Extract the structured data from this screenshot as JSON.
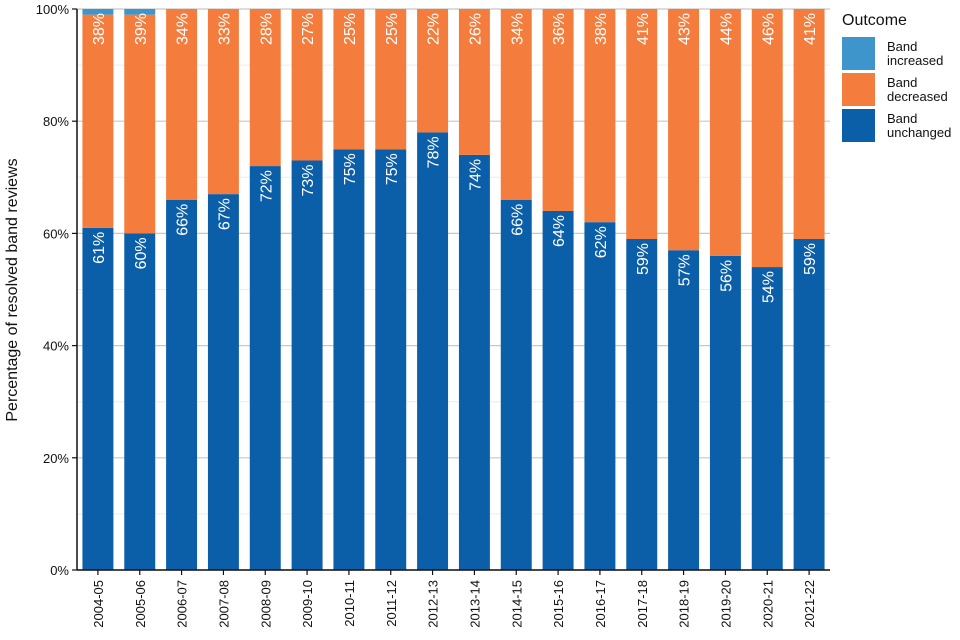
{
  "chart_data": {
    "type": "bar",
    "stacked": true,
    "title": "",
    "xlabel": "",
    "ylabel": "Percentage of resolved band reviews",
    "ylim": [
      0,
      100
    ],
    "yticks": [
      0,
      20,
      40,
      60,
      80,
      100
    ],
    "ytick_labels": [
      "0%",
      "20%",
      "40%",
      "60%",
      "80%",
      "100%"
    ],
    "grid": true,
    "legend_position": "top-right",
    "legend_title": "Outcome",
    "categories": [
      "2004-05",
      "2005-06",
      "2006-07",
      "2007-08",
      "2008-09",
      "2009-10",
      "2010-11",
      "2011-12",
      "2012-13",
      "2013-14",
      "2014-15",
      "2015-16",
      "2016-17",
      "2017-18",
      "2018-19",
      "2019-20",
      "2020-21",
      "2021-22"
    ],
    "series": [
      {
        "name": "Band unchanged",
        "legend_lines": [
          "Band",
          "unchanged"
        ],
        "color": "#0b5ea8",
        "values": [
          61,
          60,
          66,
          67,
          72,
          73,
          75,
          75,
          78,
          74,
          66,
          64,
          62,
          59,
          57,
          56,
          54,
          59
        ],
        "labels": [
          "61%",
          "60%",
          "66%",
          "67%",
          "72%",
          "73%",
          "75%",
          "75%",
          "78%",
          "74%",
          "66%",
          "64%",
          "62%",
          "59%",
          "57%",
          "56%",
          "54%",
          "59%"
        ]
      },
      {
        "name": "Band decreased",
        "legend_lines": [
          "Band",
          "decreased"
        ],
        "color": "#f47c3c",
        "values": [
          38,
          39,
          34,
          33,
          28,
          27,
          25,
          25,
          22,
          26,
          34,
          36,
          38,
          41,
          43,
          44,
          46,
          41
        ],
        "labels": [
          "38%",
          "39%",
          "34%",
          "33%",
          "28%",
          "27%",
          "25%",
          "25%",
          "22%",
          "26%",
          "34%",
          "36%",
          "38%",
          "41%",
          "43%",
          "44%",
          "46%",
          "41%"
        ]
      },
      {
        "name": "Band increased",
        "legend_lines": [
          "Band",
          "increased"
        ],
        "color": "#3d95cc",
        "values": [
          1,
          1,
          0.5,
          0.5,
          0,
          0,
          0,
          0,
          0,
          0,
          0,
          0,
          0,
          0,
          0,
          0,
          0,
          0
        ]
      }
    ]
  }
}
